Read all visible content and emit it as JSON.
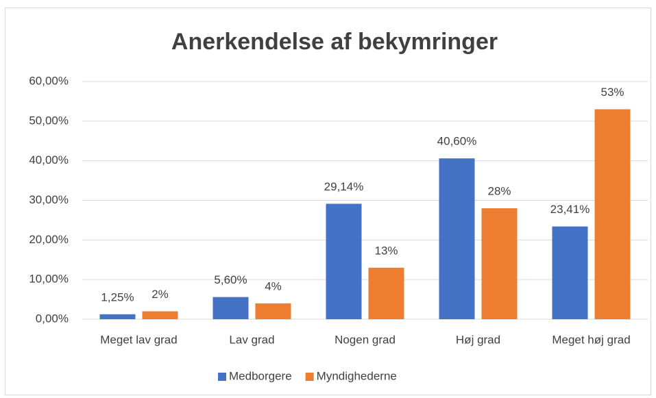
{
  "chart_data": {
    "type": "bar",
    "title": "Anerkendelse af bekymringer",
    "categories": [
      "Meget lav grad",
      "Lav grad",
      "Nogen grad",
      "Høj grad",
      "Meget høj grad"
    ],
    "series": [
      {
        "name": "Medborgere",
        "color": "#4472c4",
        "values": [
          1.25,
          5.6,
          29.14,
          40.6,
          23.41
        ],
        "value_labels": [
          "1,25%",
          "5,60%",
          "29,14%",
          "40,60%",
          "23,41%"
        ]
      },
      {
        "name": "Myndighederne",
        "color": "#ed7d31",
        "values": [
          2,
          4,
          13,
          28,
          53
        ],
        "value_labels": [
          "2%",
          "4%",
          "13%",
          "28%",
          "53%"
        ]
      }
    ],
    "ylim": [
      0,
      60
    ],
    "yticks": [
      {
        "value": 0,
        "label": "0,00%"
      },
      {
        "value": 10,
        "label": "10,00%"
      },
      {
        "value": 20,
        "label": "20,00%"
      },
      {
        "value": 30,
        "label": "30,00%"
      },
      {
        "value": 40,
        "label": "40,00%"
      },
      {
        "value": 50,
        "label": "50,00%"
      },
      {
        "value": 60,
        "label": "60,00%"
      }
    ],
    "grid": true,
    "legend": "bottom"
  }
}
